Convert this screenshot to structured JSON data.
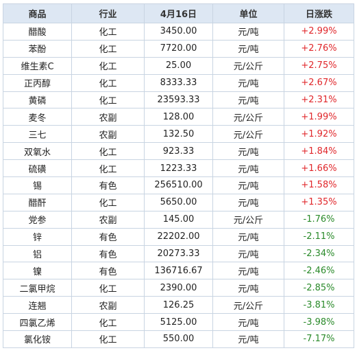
{
  "headers": [
    "商品",
    "行业",
    "4月16日",
    "单位",
    "日涨跌"
  ],
  "rows": [
    {
      "name": "醋酸",
      "sector": "化工",
      "price": "3450.00",
      "unit": "元/吨",
      "change": "+2.99%",
      "dir": "up"
    },
    {
      "name": "苯酚",
      "sector": "化工",
      "price": "7720.00",
      "unit": "元/吨",
      "change": "+2.76%",
      "dir": "up"
    },
    {
      "name": "维生素C",
      "sector": "化工",
      "price": "25.00",
      "unit": "元/公斤",
      "change": "+2.75%",
      "dir": "up"
    },
    {
      "name": "正丙醇",
      "sector": "化工",
      "price": "8333.33",
      "unit": "元/吨",
      "change": "+2.67%",
      "dir": "up"
    },
    {
      "name": "黄磷",
      "sector": "化工",
      "price": "23593.33",
      "unit": "元/吨",
      "change": "+2.31%",
      "dir": "up"
    },
    {
      "name": "麦冬",
      "sector": "农副",
      "price": "128.00",
      "unit": "元/公斤",
      "change": "+1.99%",
      "dir": "up"
    },
    {
      "name": "三七",
      "sector": "农副",
      "price": "132.50",
      "unit": "元/公斤",
      "change": "+1.92%",
      "dir": "up"
    },
    {
      "name": "双氧水",
      "sector": "化工",
      "price": "923.33",
      "unit": "元/吨",
      "change": "+1.84%",
      "dir": "up"
    },
    {
      "name": "硫磺",
      "sector": "化工",
      "price": "1223.33",
      "unit": "元/吨",
      "change": "+1.66%",
      "dir": "up"
    },
    {
      "name": "锡",
      "sector": "有色",
      "price": "256510.00",
      "unit": "元/吨",
      "change": "+1.58%",
      "dir": "up"
    },
    {
      "name": "醋酐",
      "sector": "化工",
      "price": "5650.00",
      "unit": "元/吨",
      "change": "+1.35%",
      "dir": "up"
    },
    {
      "name": "党参",
      "sector": "农副",
      "price": "145.00",
      "unit": "元/公斤",
      "change": "-1.76%",
      "dir": "down"
    },
    {
      "name": "锌",
      "sector": "有色",
      "price": "22202.00",
      "unit": "元/吨",
      "change": "-2.11%",
      "dir": "down"
    },
    {
      "name": "铝",
      "sector": "有色",
      "price": "20273.33",
      "unit": "元/吨",
      "change": "-2.34%",
      "dir": "down"
    },
    {
      "name": "镍",
      "sector": "有色",
      "price": "136716.67",
      "unit": "元/吨",
      "change": "-2.46%",
      "dir": "down"
    },
    {
      "name": "二氯甲烷",
      "sector": "化工",
      "price": "2390.00",
      "unit": "元/吨",
      "change": "-2.85%",
      "dir": "down"
    },
    {
      "name": "连翘",
      "sector": "农副",
      "price": "126.25",
      "unit": "元/公斤",
      "change": "-3.81%",
      "dir": "down"
    },
    {
      "name": "四氯乙烯",
      "sector": "化工",
      "price": "5125.00",
      "unit": "元/吨",
      "change": "-3.98%",
      "dir": "down"
    },
    {
      "name": "氯化铵",
      "sector": "化工",
      "price": "550.00",
      "unit": "元/吨",
      "change": "-7.17%",
      "dir": "down"
    }
  ],
  "colors": {
    "up": "#e0262a",
    "down": "#2a8a2a",
    "header_bg": "#dde7f3"
  }
}
